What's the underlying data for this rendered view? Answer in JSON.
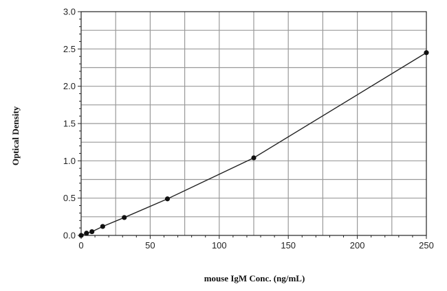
{
  "chart_data": {
    "type": "line",
    "title": "",
    "xlabel": "mouse IgM Conc. (ng/mL)",
    "ylabel": "Optical Density",
    "xlim": [
      0,
      250
    ],
    "ylim": [
      0,
      3.0
    ],
    "x_ticks": [
      "0",
      "50",
      "100",
      "150",
      "200",
      "250"
    ],
    "y_ticks": [
      "0.0",
      "0.5",
      "1.0",
      "1.5",
      "2.0",
      "2.5",
      "3.0"
    ],
    "grid": true,
    "legend": "none",
    "series": [
      {
        "x": [
          0,
          3.9,
          7.8,
          15.6,
          31.25,
          62.5,
          125,
          250
        ],
        "y": [
          0.0,
          0.03,
          0.05,
          0.12,
          0.24,
          0.49,
          1.04,
          2.45
        ]
      }
    ],
    "colors": {
      "line": "#222222",
      "marker": "#111111",
      "grid": "#999999",
      "axis": "#222222"
    }
  }
}
